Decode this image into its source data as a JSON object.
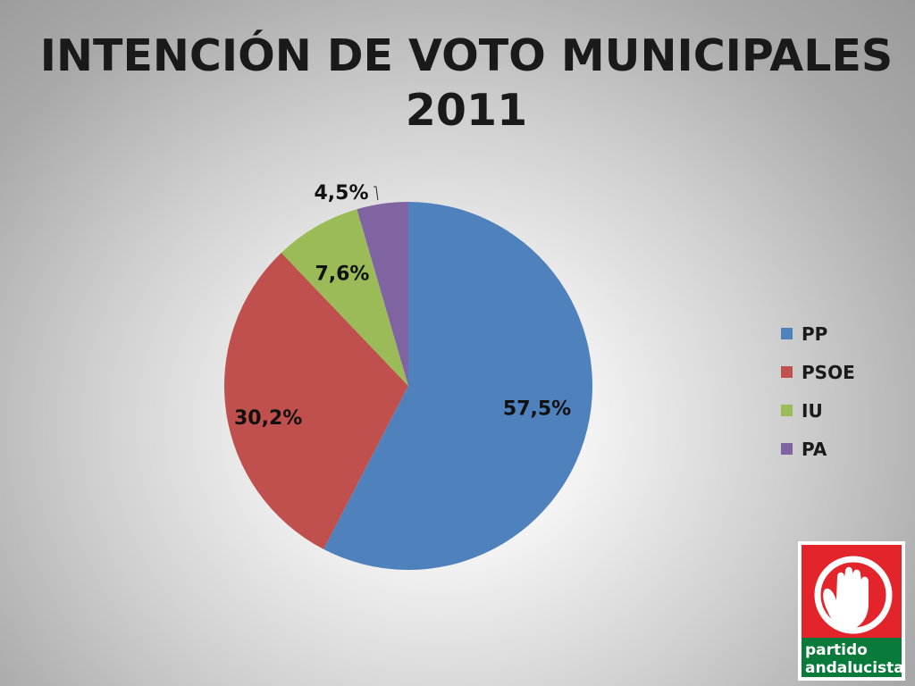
{
  "title": {
    "line1": "INTENCIÓN DE VOTO MUNICIPALES",
    "line2": "2011"
  },
  "chart_data": {
    "type": "pie",
    "title": "INTENCIÓN DE VOTO MUNICIPALES 2011",
    "series": [
      {
        "name": "",
        "categories": [
          "PP",
          "PSOE",
          "IU",
          "PA"
        ],
        "values": [
          57.5,
          30.2,
          7.6,
          4.5
        ],
        "labels": [
          "57,5%",
          "30,2%",
          "7,6%",
          "4,5%"
        ]
      }
    ],
    "colors": [
      "#4F81BD",
      "#C0504D",
      "#9BBB59",
      "#8064A2"
    ],
    "legend_position": "right"
  },
  "legend": {
    "items": [
      {
        "label": "PP",
        "color": "#4F81BD"
      },
      {
        "label": "PSOE",
        "color": "#C0504D"
      },
      {
        "label": "IU",
        "color": "#9BBB59"
      },
      {
        "label": "PA",
        "color": "#8064A2"
      }
    ]
  },
  "logo": {
    "line1": "partido",
    "line2": "andalucista",
    "colors": {
      "red": "#E3242B",
      "green": "#0A7A3B",
      "white": "#FFFFFF"
    }
  }
}
